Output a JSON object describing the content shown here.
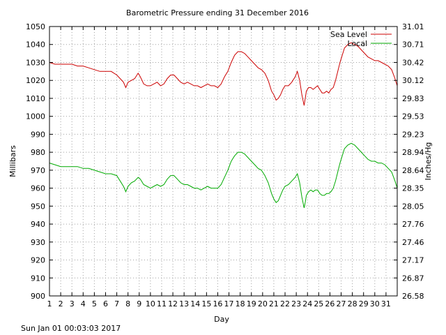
{
  "chart_data": {
    "type": "line",
    "title": "Barometric Pressure ending 31 December 2016",
    "xlabel": "Day",
    "ylabel": "Millibars",
    "y2label": "Inches/Hg",
    "footer": "Sun Jan 01 00:03:03 2017",
    "xlim": [
      1,
      32
    ],
    "ylim": [
      900,
      1050
    ],
    "grid": true,
    "legend_position": "top-right",
    "x_tick_labels": [
      "1",
      "2",
      "3",
      "4",
      "5",
      "6",
      "7",
      "8",
      "9",
      "10",
      "11",
      "12",
      "13",
      "14",
      "15",
      "16",
      "17",
      "18",
      "19",
      "20",
      "21",
      "22",
      "23",
      "24",
      "25",
      "26",
      "27",
      "28",
      "29",
      "30",
      "31"
    ],
    "y_tick_labels": [
      "900",
      "910",
      "920",
      "930",
      "940",
      "950",
      "960",
      "970",
      "980",
      "990",
      "1000",
      "1010",
      "1020",
      "1030",
      "1040",
      "1050"
    ],
    "y2_tick_labels": [
      "26.58",
      "26.87",
      "27.17",
      "27.46",
      "27.76",
      "28.05",
      "28.35",
      "28.64",
      "28.94",
      "29.23",
      "29.53",
      "29.83",
      "30.12",
      "30.42",
      "30.71",
      "31.01"
    ],
    "series": [
      {
        "name": "Sea Level",
        "color": "#cc0000",
        "x": [
          1,
          1.5,
          2,
          2.5,
          3,
          3.5,
          4,
          4.5,
          5,
          5.5,
          6,
          6.5,
          7,
          7.3,
          7.6,
          7.8,
          8,
          8.3,
          8.6,
          8.9,
          9.1,
          9.4,
          9.7,
          10,
          10.3,
          10.6,
          10.9,
          11.2,
          11.5,
          11.8,
          12.1,
          12.4,
          12.7,
          13,
          13.3,
          13.6,
          13.9,
          14.2,
          14.5,
          14.8,
          15.1,
          15.4,
          15.7,
          16,
          16.3,
          16.6,
          16.9,
          17.2,
          17.5,
          17.8,
          18.1,
          18.4,
          18.7,
          19,
          19.3,
          19.6,
          19.9,
          20.2,
          20.5,
          20.8,
          21,
          21.2,
          21.4,
          21.6,
          21.8,
          22,
          22.3,
          22.6,
          22.9,
          23.1,
          23.3,
          23.5,
          23.7,
          23.8,
          23.9,
          24.1,
          24.3,
          24.5,
          24.7,
          24.9,
          25.1,
          25.3,
          25.5,
          25.7,
          25.9,
          26.1,
          26.3,
          26.5,
          26.7,
          26.9,
          27.1,
          27.3,
          27.6,
          27.9,
          28.2,
          28.5,
          28.8,
          29.1,
          29.4,
          29.7,
          30,
          30.3,
          30.6,
          30.9,
          31.2,
          31.5,
          31.8,
          32
        ],
        "y": [
          1030,
          1029,
          1029,
          1029,
          1029,
          1028,
          1028,
          1027,
          1026,
          1025,
          1025,
          1025,
          1023,
          1021,
          1019,
          1016,
          1019,
          1020,
          1021,
          1024,
          1022,
          1018,
          1017,
          1017,
          1018,
          1019,
          1017,
          1018,
          1021,
          1023,
          1023,
          1021,
          1019,
          1018,
          1019,
          1018,
          1017,
          1017,
          1016,
          1017,
          1018,
          1017,
          1017,
          1016,
          1018,
          1022,
          1025,
          1030,
          1034,
          1036,
          1036,
          1035,
          1033,
          1031,
          1029,
          1027,
          1026,
          1024,
          1020,
          1014,
          1012,
          1009,
          1010,
          1012,
          1015,
          1017,
          1017,
          1019,
          1022,
          1025,
          1020,
          1012,
          1006,
          1010,
          1014,
          1016,
          1016,
          1015,
          1016,
          1017,
          1015,
          1013,
          1013,
          1014,
          1013,
          1015,
          1016,
          1020,
          1025,
          1030,
          1034,
          1038,
          1040,
          1041,
          1040,
          1039,
          1037,
          1035,
          1033,
          1032,
          1031,
          1031,
          1030,
          1029,
          1028,
          1026,
          1021,
          1017
        ]
      },
      {
        "name": "Local",
        "color": "#00aa00",
        "x": [
          1,
          1.5,
          2,
          2.5,
          3,
          3.5,
          4,
          4.5,
          5,
          5.5,
          6,
          6.5,
          7,
          7.3,
          7.6,
          7.8,
          8,
          8.3,
          8.6,
          8.9,
          9.1,
          9.4,
          9.7,
          10,
          10.3,
          10.6,
          10.9,
          11.2,
          11.5,
          11.8,
          12.1,
          12.4,
          12.7,
          13,
          13.3,
          13.6,
          13.9,
          14.2,
          14.5,
          14.8,
          15.1,
          15.4,
          15.7,
          16,
          16.3,
          16.6,
          16.9,
          17.2,
          17.5,
          17.8,
          18.1,
          18.4,
          18.7,
          19,
          19.3,
          19.6,
          19.9,
          20.2,
          20.5,
          20.8,
          21,
          21.2,
          21.4,
          21.6,
          21.8,
          22,
          22.3,
          22.6,
          22.9,
          23.1,
          23.3,
          23.5,
          23.7,
          23.8,
          23.9,
          24.1,
          24.3,
          24.5,
          24.7,
          24.9,
          25.1,
          25.3,
          25.5,
          25.7,
          25.9,
          26.1,
          26.3,
          26.5,
          26.7,
          26.9,
          27.1,
          27.3,
          27.6,
          27.9,
          28.2,
          28.5,
          28.8,
          29.1,
          29.4,
          29.7,
          30,
          30.3,
          30.6,
          30.9,
          31.2,
          31.5,
          31.8,
          32
        ],
        "y": [
          974,
          973,
          972,
          972,
          972,
          972,
          971,
          971,
          970,
          969,
          968,
          968,
          967,
          964,
          961,
          958,
          961,
          963,
          964,
          966,
          965,
          962,
          961,
          960,
          961,
          962,
          961,
          962,
          965,
          967,
          967,
          965,
          963,
          962,
          962,
          961,
          960,
          960,
          959,
          960,
          961,
          960,
          960,
          960,
          962,
          966,
          970,
          975,
          978,
          980,
          980,
          979,
          977,
          975,
          973,
          971,
          970,
          967,
          963,
          957,
          954,
          952,
          953,
          956,
          959,
          961,
          962,
          964,
          966,
          968,
          963,
          955,
          949,
          952,
          956,
          958,
          959,
          958,
          959,
          959,
          957,
          956,
          956,
          957,
          957,
          958,
          960,
          964,
          969,
          974,
          978,
          982,
          984,
          985,
          984,
          982,
          980,
          978,
          976,
          975,
          975,
          974,
          974,
          973,
          971,
          969,
          964,
          960
        ]
      }
    ]
  }
}
